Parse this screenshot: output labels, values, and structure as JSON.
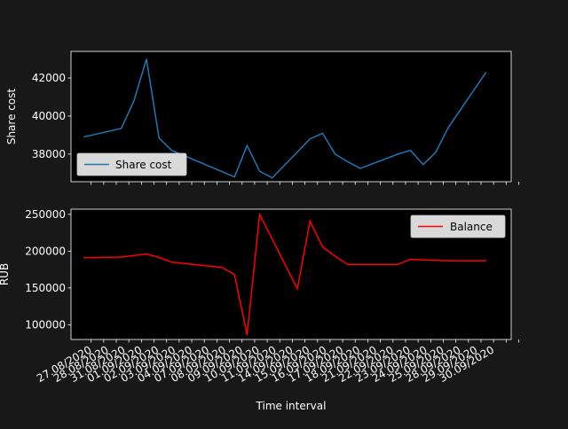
{
  "chart_data": [
    {
      "type": "line",
      "ylabel": "Share cost",
      "ylim": [
        36550,
        43400
      ],
      "yticks": [
        38000,
        40000,
        42000
      ],
      "ytick_labels": [
        "38000",
        "40000",
        "42000"
      ],
      "legend": "lower-left",
      "series": [
        {
          "name": "Share cost",
          "color": "#1f77b4",
          "x": [
            0,
            3,
            4,
            5,
            6,
            7,
            12,
            13,
            14,
            15,
            18,
            19,
            20,
            21,
            22,
            25,
            26,
            27,
            28,
            29,
            32
          ],
          "values": [
            38900,
            39350,
            40800,
            43000,
            38850,
            38200,
            36800,
            38450,
            37100,
            36750,
            38800,
            39100,
            38000,
            37600,
            37250,
            38000,
            38200,
            37450,
            38100,
            39400,
            42300
          ]
        }
      ]
    },
    {
      "type": "line",
      "ylabel": "RUB",
      "xlabel": "Time interval",
      "ylim": [
        80000,
        257000
      ],
      "yticks": [
        100000,
        150000,
        200000,
        250000
      ],
      "ytick_labels": [
        "100000",
        "150000",
        "200000",
        "250000"
      ],
      "legend": "upper-right",
      "series": [
        {
          "name": "Balance",
          "color": "#ff0000",
          "x": [
            0,
            3,
            5,
            6,
            7,
            11,
            12,
            13,
            14,
            17,
            18,
            19,
            20,
            21,
            22,
            23,
            25,
            26,
            27,
            28,
            29,
            30,
            31,
            32
          ],
          "values": [
            191000,
            192000,
            196000,
            191500,
            185000,
            178000,
            168000,
            86000,
            250000,
            149000,
            241000,
            206000,
            193000,
            182000,
            182000,
            182000,
            182000,
            189000,
            188000,
            187500,
            187000,
            187000,
            187000,
            187000
          ]
        }
      ]
    }
  ],
  "x_axis": {
    "categories": [
      "27.08/2020",
      "28.08/2020",
      "31.08/2020",
      "01.09/2020",
      "02.09/2020",
      "03.09/2020",
      "04.09/2020",
      "07.09/2020",
      "08.09/2020",
      "09.09/2020",
      "10.09/2020",
      "11.09/2020",
      "14.09/2020",
      "15.09/2020",
      "16.09/2020",
      "17.09/2020",
      "18.09/2020",
      "21.09/2020",
      "22.09/2020",
      "23.09/2020",
      "24.09/2020",
      "25.09/2020",
      "28.09/2020",
      "29.09/2020",
      "30.09/2020"
    ],
    "xlim": [
      -1,
      34
    ]
  }
}
